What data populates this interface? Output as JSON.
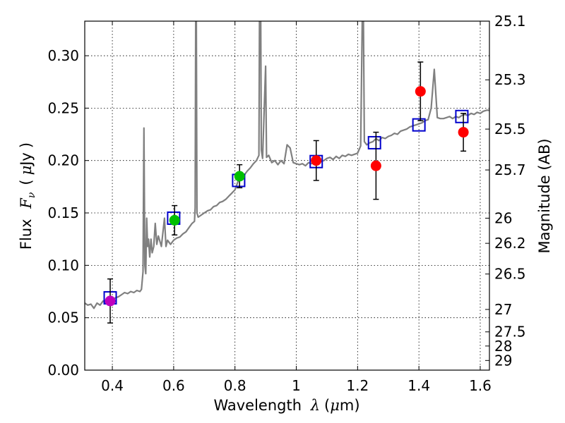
{
  "chart_data": {
    "type": "scatter",
    "title": "",
    "xlabel": "Wavelength",
    "xlabel_symbol": "λ",
    "xlabel_unit_prefix": "(",
    "xlabel_unit_mu": "μ",
    "xlabel_unit_rest": "m)",
    "ylabel": "Flux",
    "ylabel_symbol": "F",
    "ylabel_symbol_sub": "ν",
    "ylabel_unit_open": "(",
    "ylabel_unit_mu": "μ",
    "ylabel_unit_rest": "Jy",
    "ylabel_unit_close": ")",
    "y2label": "Magnitude (AB)",
    "xlim": [
      0.31,
      1.63
    ],
    "ylim": [
      0.0,
      0.333
    ],
    "grid": true,
    "x_ticks": [
      {
        "value": 0.4,
        "label": "0.4"
      },
      {
        "value": 0.6,
        "label": "0.6"
      },
      {
        "value": 0.8,
        "label": "0.8"
      },
      {
        "value": 1.0,
        "label": "1"
      },
      {
        "value": 1.2,
        "label": "1.2"
      },
      {
        "value": 1.4,
        "label": "1.4"
      },
      {
        "value": 1.6,
        "label": "1.6"
      }
    ],
    "y_ticks": [
      {
        "value": 0.0,
        "label": "0.00"
      },
      {
        "value": 0.05,
        "label": "0.05"
      },
      {
        "value": 0.1,
        "label": "0.10"
      },
      {
        "value": 0.15,
        "label": "0.15"
      },
      {
        "value": 0.2,
        "label": "0.20"
      },
      {
        "value": 0.25,
        "label": "0.25"
      },
      {
        "value": 0.3,
        "label": "0.30"
      }
    ],
    "y2_ticks": [
      {
        "label": "25.1",
        "flux": 0.333
      },
      {
        "label": "25.3",
        "flux": 0.277
      },
      {
        "label": "25.5",
        "flux": 0.23
      },
      {
        "label": "25.7",
        "flux": 0.191
      },
      {
        "label": "26",
        "flux": 0.145
      },
      {
        "label": "26.2",
        "flux": 0.121
      },
      {
        "label": "26.5",
        "flux": 0.0917
      },
      {
        "label": "27",
        "flux": 0.0579
      },
      {
        "label": "27.5",
        "flux": 0.0365
      },
      {
        "label": "28",
        "flux": 0.023
      },
      {
        "label": "29",
        "flux": 0.0092
      }
    ],
    "colors": {
      "model": "#808080",
      "model_box": "#0000cc",
      "grid": "#000000",
      "purple": "#bf00bf",
      "green": "#00bf00",
      "red": "#ff0000"
    },
    "model_spectrum": [
      [
        0.31,
        0.064
      ],
      [
        0.32,
        0.062
      ],
      [
        0.33,
        0.063
      ],
      [
        0.34,
        0.059
      ],
      [
        0.35,
        0.064
      ],
      [
        0.36,
        0.062
      ],
      [
        0.37,
        0.066
      ],
      [
        0.38,
        0.064
      ],
      [
        0.39,
        0.068
      ],
      [
        0.4,
        0.067
      ],
      [
        0.41,
        0.069
      ],
      [
        0.42,
        0.07
      ],
      [
        0.43,
        0.072
      ],
      [
        0.44,
        0.074
      ],
      [
        0.45,
        0.073
      ],
      [
        0.46,
        0.075
      ],
      [
        0.47,
        0.074
      ],
      [
        0.48,
        0.076
      ],
      [
        0.49,
        0.075
      ],
      [
        0.495,
        0.077
      ],
      [
        0.5,
        0.094
      ],
      [
        0.503,
        0.231
      ],
      [
        0.506,
        0.1
      ],
      [
        0.509,
        0.092
      ],
      [
        0.512,
        0.145
      ],
      [
        0.515,
        0.118
      ],
      [
        0.518,
        0.125
      ],
      [
        0.522,
        0.108
      ],
      [
        0.526,
        0.125
      ],
      [
        0.53,
        0.112
      ],
      [
        0.535,
        0.118
      ],
      [
        0.54,
        0.14
      ],
      [
        0.545,
        0.12
      ],
      [
        0.55,
        0.128
      ],
      [
        0.56,
        0.118
      ],
      [
        0.57,
        0.145
      ],
      [
        0.575,
        0.118
      ],
      [
        0.58,
        0.124
      ],
      [
        0.59,
        0.12
      ],
      [
        0.6,
        0.124
      ],
      [
        0.61,
        0.126
      ],
      [
        0.62,
        0.127
      ],
      [
        0.63,
        0.13
      ],
      [
        0.64,
        0.132
      ],
      [
        0.65,
        0.136
      ],
      [
        0.66,
        0.14
      ],
      [
        0.668,
        0.142
      ],
      [
        0.67,
        0.155
      ],
      [
        0.672,
        0.333
      ],
      [
        0.674,
        0.333
      ],
      [
        0.676,
        0.15
      ],
      [
        0.68,
        0.146
      ],
      [
        0.69,
        0.148
      ],
      [
        0.7,
        0.15
      ],
      [
        0.71,
        0.152
      ],
      [
        0.72,
        0.153
      ],
      [
        0.73,
        0.156
      ],
      [
        0.74,
        0.157
      ],
      [
        0.75,
        0.16
      ],
      [
        0.76,
        0.161
      ],
      [
        0.77,
        0.163
      ],
      [
        0.78,
        0.166
      ],
      [
        0.79,
        0.169
      ],
      [
        0.8,
        0.172
      ],
      [
        0.81,
        0.18
      ],
      [
        0.82,
        0.183
      ],
      [
        0.83,
        0.186
      ],
      [
        0.84,
        0.19
      ],
      [
        0.85,
        0.193
      ],
      [
        0.86,
        0.197
      ],
      [
        0.87,
        0.2
      ],
      [
        0.878,
        0.205
      ],
      [
        0.88,
        0.333
      ],
      [
        0.884,
        0.333
      ],
      [
        0.886,
        0.21
      ],
      [
        0.89,
        0.202
      ],
      [
        0.9,
        0.29
      ],
      [
        0.903,
        0.203
      ],
      [
        0.91,
        0.205
      ],
      [
        0.92,
        0.198
      ],
      [
        0.93,
        0.2
      ],
      [
        0.94,
        0.196
      ],
      [
        0.95,
        0.2
      ],
      [
        0.96,
        0.197
      ],
      [
        0.97,
        0.215
      ],
      [
        0.98,
        0.212
      ],
      [
        0.99,
        0.198
      ],
      [
        1.0,
        0.197
      ],
      [
        1.01,
        0.196
      ],
      [
        1.02,
        0.197
      ],
      [
        1.03,
        0.195
      ],
      [
        1.04,
        0.198
      ],
      [
        1.05,
        0.197
      ],
      [
        1.06,
        0.2
      ],
      [
        1.07,
        0.197
      ],
      [
        1.08,
        0.199
      ],
      [
        1.09,
        0.2
      ],
      [
        1.1,
        0.202
      ],
      [
        1.11,
        0.203
      ],
      [
        1.12,
        0.201
      ],
      [
        1.13,
        0.204
      ],
      [
        1.14,
        0.202
      ],
      [
        1.15,
        0.205
      ],
      [
        1.16,
        0.204
      ],
      [
        1.17,
        0.206
      ],
      [
        1.18,
        0.205
      ],
      [
        1.19,
        0.206
      ],
      [
        1.2,
        0.207
      ],
      [
        1.21,
        0.214
      ],
      [
        1.215,
        0.333
      ],
      [
        1.219,
        0.333
      ],
      [
        1.222,
        0.218
      ],
      [
        1.23,
        0.215
      ],
      [
        1.24,
        0.217
      ],
      [
        1.25,
        0.218
      ],
      [
        1.26,
        0.221
      ],
      [
        1.27,
        0.219
      ],
      [
        1.28,
        0.222
      ],
      [
        1.29,
        0.221
      ],
      [
        1.3,
        0.223
      ],
      [
        1.31,
        0.224
      ],
      [
        1.32,
        0.226
      ],
      [
        1.33,
        0.225
      ],
      [
        1.34,
        0.228
      ],
      [
        1.35,
        0.229
      ],
      [
        1.36,
        0.23
      ],
      [
        1.37,
        0.232
      ],
      [
        1.38,
        0.233
      ],
      [
        1.39,
        0.234
      ],
      [
        1.4,
        0.235
      ],
      [
        1.41,
        0.236
      ],
      [
        1.42,
        0.238
      ],
      [
        1.43,
        0.239
      ],
      [
        1.44,
        0.25
      ],
      [
        1.45,
        0.287
      ],
      [
        1.46,
        0.241
      ],
      [
        1.47,
        0.24
      ],
      [
        1.48,
        0.24
      ],
      [
        1.49,
        0.241
      ],
      [
        1.5,
        0.242
      ],
      [
        1.51,
        0.24
      ],
      [
        1.52,
        0.242
      ],
      [
        1.53,
        0.241
      ],
      [
        1.54,
        0.243
      ],
      [
        1.55,
        0.244
      ],
      [
        1.56,
        0.243
      ],
      [
        1.57,
        0.245
      ],
      [
        1.58,
        0.244
      ],
      [
        1.59,
        0.246
      ],
      [
        1.6,
        0.245
      ],
      [
        1.61,
        0.247
      ],
      [
        1.62,
        0.248
      ],
      [
        1.63,
        0.248
      ]
    ],
    "model_boxes": [
      {
        "x": 0.393,
        "y": 0.069
      },
      {
        "x": 0.6,
        "y": 0.145
      },
      {
        "x": 0.812,
        "y": 0.181
      },
      {
        "x": 1.065,
        "y": 0.199
      },
      {
        "x": 1.255,
        "y": 0.217
      },
      {
        "x": 1.4,
        "y": 0.234
      },
      {
        "x": 1.54,
        "y": 0.242
      }
    ],
    "observed": [
      {
        "x": 0.393,
        "y": 0.066,
        "err": 0.021,
        "color": "purple"
      },
      {
        "x": 0.603,
        "y": 0.143,
        "err": 0.014,
        "color": "green"
      },
      {
        "x": 0.815,
        "y": 0.185,
        "err": 0.011,
        "color": "green"
      },
      {
        "x": 1.065,
        "y": 0.2,
        "err": 0.019,
        "color": "red"
      },
      {
        "x": 1.26,
        "y": 0.195,
        "err": 0.032,
        "color": "red"
      },
      {
        "x": 1.405,
        "y": 0.266,
        "err": 0.028,
        "color": "red"
      },
      {
        "x": 1.545,
        "y": 0.227,
        "err": 0.018,
        "color": "red"
      }
    ]
  }
}
